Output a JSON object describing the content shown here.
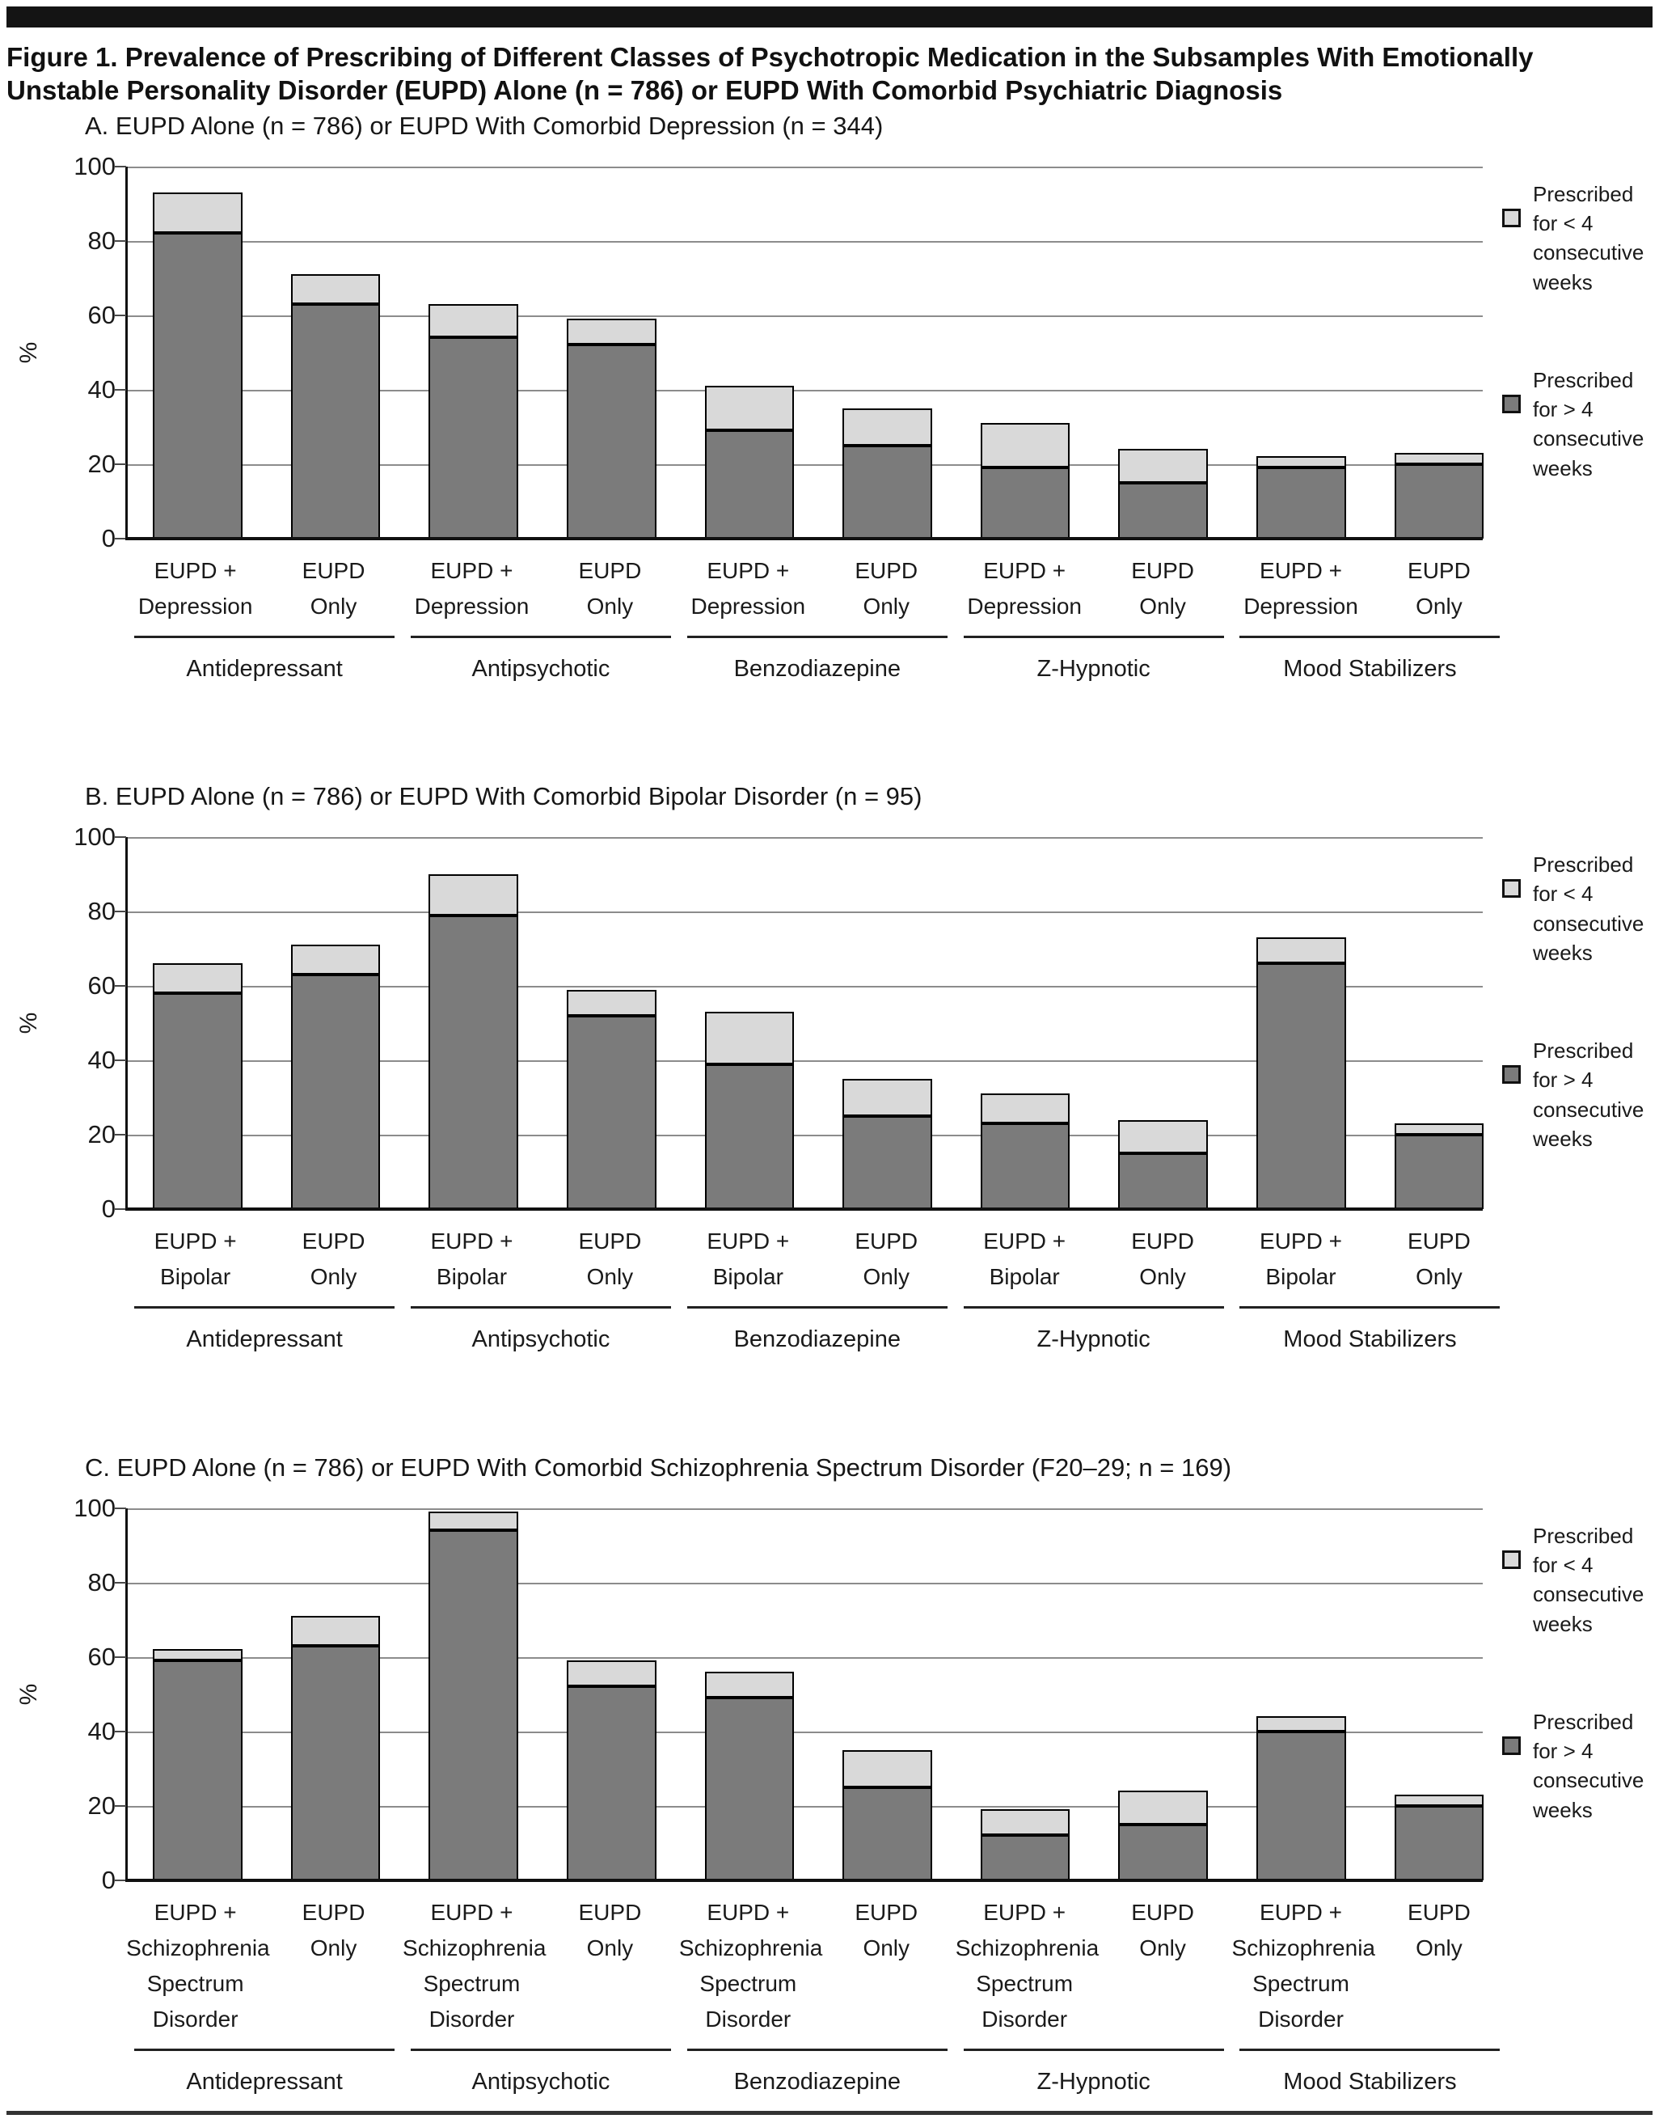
{
  "page": {
    "title_lines": [
      "Figure 1. Prevalence of Prescribing of Different Classes of Psychotropic Medication in the Subsamples With Emotionally",
      "Unstable Personality Disorder (EUPD) Alone (n = 786) or EUPD With Comorbid Psychiatric Diagnosis"
    ]
  },
  "legend": {
    "entries": [
      {
        "id": "lt4",
        "label": "Prescribed for < 4 consecutive weeks",
        "color": "#d9d9d9"
      },
      {
        "id": "gt4",
        "label": "Prescribed for > 4 consecutive weeks",
        "color": "#7b7b7b"
      }
    ]
  },
  "chart_data": [
    {
      "type": "bar",
      "stacked": true,
      "panel": "A",
      "title": "A. EUPD Alone (n = 786) or EUPD With Comorbid Depression (n = 344)",
      "ylabel": "%",
      "ylim": [
        0,
        100
      ],
      "yticks": [
        0,
        20,
        40,
        60,
        80,
        100
      ],
      "grid": true,
      "legend_position": "right",
      "groups": [
        "Antidepressant",
        "Antipsychotic",
        "Benzodiazepine",
        "Z-Hypnotic",
        "Mood Stabilizers"
      ],
      "bar_labels": [
        [
          "EUPD +",
          "Depression"
        ],
        [
          "EUPD",
          "Only"
        ],
        [
          "EUPD +",
          "Depression"
        ],
        [
          "EUPD",
          "Only"
        ],
        [
          "EUPD +",
          "Depression"
        ],
        [
          "EUPD",
          "Only"
        ],
        [
          "EUPD +",
          "Depression"
        ],
        [
          "EUPD",
          "Only"
        ],
        [
          "EUPD +",
          "Depression"
        ],
        [
          "EUPD",
          "Only"
        ]
      ],
      "series": [
        {
          "name": "Prescribed for > 4 consecutive weeks",
          "color": "#7b7b7b",
          "values": [
            82,
            63,
            54,
            52,
            29,
            25,
            19,
            15,
            19,
            20
          ]
        },
        {
          "name": "Prescribed for < 4 consecutive weeks",
          "color": "#d9d9d9",
          "values": [
            11,
            8,
            9,
            7,
            12,
            10,
            12,
            9,
            3,
            3
          ]
        }
      ],
      "totals": [
        93,
        71,
        63,
        59,
        41,
        35,
        31,
        24,
        22,
        23
      ]
    },
    {
      "type": "bar",
      "stacked": true,
      "panel": "B",
      "title": "B. EUPD Alone (n = 786) or EUPD With Comorbid Bipolar Disorder (n = 95)",
      "ylabel": "%",
      "ylim": [
        0,
        100
      ],
      "yticks": [
        0,
        20,
        40,
        60,
        80,
        100
      ],
      "grid": true,
      "legend_position": "right",
      "groups": [
        "Antidepressant",
        "Antipsychotic",
        "Benzodiazepine",
        "Z-Hypnotic",
        "Mood Stabilizers"
      ],
      "bar_labels": [
        [
          "EUPD +",
          "Bipolar"
        ],
        [
          "EUPD",
          "Only"
        ],
        [
          "EUPD +",
          "Bipolar"
        ],
        [
          "EUPD",
          "Only"
        ],
        [
          "EUPD +",
          "Bipolar"
        ],
        [
          "EUPD",
          "Only"
        ],
        [
          "EUPD +",
          "Bipolar"
        ],
        [
          "EUPD",
          "Only"
        ],
        [
          "EUPD +",
          "Bipolar"
        ],
        [
          "EUPD",
          "Only"
        ]
      ],
      "series": [
        {
          "name": "Prescribed for > 4 consecutive weeks",
          "color": "#7b7b7b",
          "values": [
            58,
            63,
            79,
            52,
            39,
            25,
            23,
            15,
            66,
            20
          ]
        },
        {
          "name": "Prescribed for < 4 consecutive weeks",
          "color": "#d9d9d9",
          "values": [
            8,
            8,
            11,
            7,
            14,
            10,
            8,
            9,
            7,
            3
          ]
        }
      ],
      "totals": [
        66,
        71,
        90,
        59,
        53,
        35,
        31,
        24,
        73,
        23
      ]
    },
    {
      "type": "bar",
      "stacked": true,
      "panel": "C",
      "title": "C. EUPD Alone (n = 786) or EUPD With Comorbid Schizophrenia Spectrum Disorder (F20–29; n = 169)",
      "ylabel": "%",
      "ylim": [
        0,
        100
      ],
      "yticks": [
        0,
        20,
        40,
        60,
        80,
        100
      ],
      "grid": true,
      "legend_position": "right",
      "groups": [
        "Antidepressant",
        "Antipsychotic",
        "Benzodiazepine",
        "Z-Hypnotic",
        "Mood Stabilizers"
      ],
      "bar_labels": [
        [
          "EUPD +",
          "Schizophrenia",
          "Spectrum",
          "Disorder"
        ],
        [
          "EUPD",
          "Only"
        ],
        [
          "EUPD +",
          "Schizophrenia",
          "Spectrum",
          "Disorder"
        ],
        [
          "EUPD",
          "Only"
        ],
        [
          "EUPD +",
          "Schizophrenia",
          "Spectrum",
          "Disorder"
        ],
        [
          "EUPD",
          "Only"
        ],
        [
          "EUPD +",
          "Schizophrenia",
          "Spectrum",
          "Disorder"
        ],
        [
          "EUPD",
          "Only"
        ],
        [
          "EUPD +",
          "Schizophrenia",
          "Spectrum",
          "Disorder"
        ],
        [
          "EUPD",
          "Only"
        ]
      ],
      "series": [
        {
          "name": "Prescribed for > 4 consecutive weeks",
          "color": "#7b7b7b",
          "values": [
            59,
            63,
            94,
            52,
            49,
            25,
            12,
            15,
            40,
            20
          ]
        },
        {
          "name": "Prescribed for < 4 consecutive weeks",
          "color": "#d9d9d9",
          "values": [
            3,
            8,
            5,
            7,
            7,
            10,
            7,
            9,
            4,
            3
          ]
        }
      ],
      "totals": [
        62,
        71,
        99,
        59,
        56,
        35,
        19,
        24,
        44,
        23
      ]
    }
  ]
}
